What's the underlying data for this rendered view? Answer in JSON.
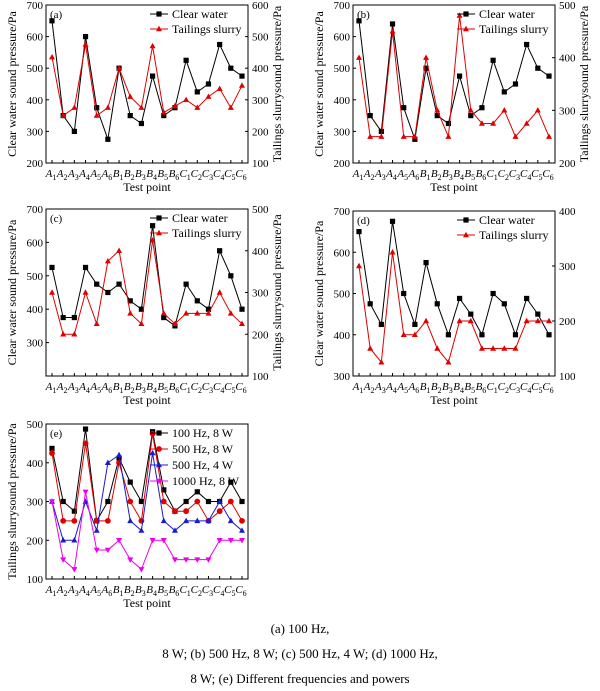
{
  "caption": {
    "line1": "(a)  100  Hz,",
    "line2": "8 W; (b) 500 Hz, 8 W; (c) 500 Hz, 4 W; (d) 1000 Hz,",
    "line3": "8 W; (e) Different frequencies and powers"
  },
  "chart_data": [
    {
      "panel": "(a)",
      "type": "line",
      "categories": [
        "A1",
        "A2",
        "A3",
        "A4",
        "A5",
        "A6",
        "B1",
        "B2",
        "B3",
        "B4",
        "B5",
        "B6",
        "C1",
        "C2",
        "C3",
        "C4",
        "C5",
        "C6"
      ],
      "xlabel": "Test point",
      "ylabel": "Clear water sound pressure/Pa",
      "ylabel2": "Tailings slurrysound pressure/Pa",
      "ylim": [
        200,
        700
      ],
      "yticks": [
        200,
        300,
        400,
        500,
        600,
        700
      ],
      "ylim2": [
        100,
        600
      ],
      "yticks2": [
        100,
        200,
        300,
        400,
        500,
        600
      ],
      "legend_position": "top-right",
      "series": [
        {
          "name": "Clear water",
          "axis": "left",
          "color": "#000000",
          "marker": "square",
          "values": [
            650,
            350,
            300,
            600,
            375,
            275,
            500,
            350,
            325,
            475,
            350,
            375,
            525,
            425,
            450,
            575,
            500,
            475
          ]
        },
        {
          "name": "Tailings slurry",
          "axis": "right",
          "color": "#e00000",
          "marker": "triangle",
          "values": [
            435,
            250,
            275,
            475,
            250,
            275,
            400,
            310,
            275,
            470,
            260,
            280,
            300,
            275,
            310,
            335,
            275,
            345
          ]
        }
      ]
    },
    {
      "panel": "(b)",
      "type": "line",
      "categories": [
        "A1",
        "A2",
        "A3",
        "A4",
        "A5",
        "A6",
        "B1",
        "B2",
        "B3",
        "B4",
        "B5",
        "B6",
        "C1",
        "C2",
        "C3",
        "C4",
        "C5",
        "C6"
      ],
      "xlabel": "Test point",
      "ylabel": "Clear water sound pressure/Pa",
      "ylabel2": "Tailings slurrysound pressure/Pa",
      "ylim": [
        200,
        700
      ],
      "yticks": [
        200,
        300,
        400,
        500,
        600,
        700
      ],
      "ylim2": [
        200,
        500
      ],
      "yticks2": [
        200,
        300,
        400,
        500
      ],
      "legend_position": "top-right",
      "series": [
        {
          "name": "Clear water",
          "axis": "left",
          "color": "#000000",
          "marker": "square",
          "values": [
            650,
            350,
            300,
            640,
            375,
            275,
            500,
            350,
            325,
            475,
            350,
            375,
            525,
            425,
            450,
            575,
            500,
            475
          ]
        },
        {
          "name": "Tailings slurry",
          "axis": "right",
          "color": "#e00000",
          "marker": "triangle",
          "values": [
            400,
            250,
            250,
            450,
            250,
            250,
            400,
            300,
            250,
            480,
            300,
            275,
            275,
            300,
            250,
            275,
            300,
            250
          ]
        }
      ]
    },
    {
      "panel": "(c)",
      "type": "line",
      "categories": [
        "A1",
        "A2",
        "A3",
        "A4",
        "A5",
        "A6",
        "B1",
        "B2",
        "B3",
        "B4",
        "B5",
        "B6",
        "C1",
        "C2",
        "C3",
        "C4",
        "C5",
        "C6"
      ],
      "xlabel": "Test point",
      "ylabel": "Clear water sound pressure/Pa",
      "ylabel2": "Tailings slurrysound pressure/Pa",
      "ylim": [
        200,
        700
      ],
      "yticks": [
        300,
        400,
        500,
        600,
        700
      ],
      "ylim2": [
        100,
        500
      ],
      "yticks2": [
        100,
        200,
        300,
        400,
        500
      ],
      "legend_position": "top-right",
      "series": [
        {
          "name": "Clear water",
          "axis": "left",
          "color": "#000000",
          "marker": "square",
          "values": [
            525,
            375,
            375,
            525,
            475,
            450,
            475,
            425,
            400,
            650,
            375,
            350,
            475,
            425,
            400,
            575,
            500,
            400
          ]
        },
        {
          "name": "Tailings slurry",
          "axis": "right",
          "color": "#e00000",
          "marker": "triangle",
          "values": [
            300,
            200,
            200,
            300,
            225,
            375,
            400,
            250,
            225,
            425,
            250,
            225,
            250,
            250,
            250,
            300,
            250,
            225
          ]
        }
      ]
    },
    {
      "panel": "(d)",
      "type": "line",
      "categories": [
        "A1",
        "A2",
        "A3",
        "A4",
        "A5",
        "A6",
        "B1",
        "B2",
        "B3",
        "B4",
        "B5",
        "B6",
        "C1",
        "C2",
        "C3",
        "C4",
        "C5",
        "C6"
      ],
      "xlabel": "Test point",
      "ylabel": "Clear water sound pressure/Pa",
      "ylim": [
        300,
        700
      ],
      "yticks": [
        300,
        400,
        500,
        600,
        700
      ],
      "ylim2": [
        100,
        400
      ],
      "yticks2": [
        100,
        200,
        300,
        400
      ],
      "legend_position": "top-right",
      "series": [
        {
          "name": "Clear water",
          "axis": "left",
          "color": "#000000",
          "marker": "square",
          "values": [
            650,
            475,
            425,
            675,
            500,
            425,
            575,
            475,
            400,
            488,
            450,
            400,
            500,
            475,
            400,
            488,
            450,
            400
          ]
        },
        {
          "name": "Tailings slurry",
          "axis": "right",
          "color": "#e00000",
          "marker": "triangle",
          "values": [
            300,
            150,
            125,
            325,
            175,
            175,
            200,
            150,
            125,
            200,
            200,
            150,
            150,
            150,
            150,
            200,
            200,
            200
          ]
        }
      ]
    },
    {
      "panel": "(e)",
      "type": "line",
      "categories": [
        "A1",
        "A2",
        "A3",
        "A4",
        "A5",
        "A6",
        "B1",
        "B2",
        "B3",
        "B4",
        "B5",
        "B6",
        "C1",
        "C2",
        "C3",
        "C4",
        "C5",
        "C6"
      ],
      "xlabel": "Test point",
      "ylabel": "Tailings slurrysound pressure/Pa",
      "ylim": [
        100,
        500
      ],
      "yticks": [
        100,
        200,
        300,
        400,
        500
      ],
      "legend_position": "top-right",
      "series": [
        {
          "name": "100 Hz, 8 W",
          "color": "#000000",
          "marker": "square",
          "values": [
            437,
            300,
            275,
            487,
            250,
            300,
            412,
            350,
            300,
            480,
            330,
            275,
            300,
            325,
            300,
            300,
            350,
            300
          ]
        },
        {
          "name": "500 Hz, 8 W",
          "color": "#e00000",
          "marker": "circle",
          "values": [
            425,
            250,
            250,
            450,
            250,
            250,
            400,
            300,
            250,
            475,
            300,
            275,
            275,
            300,
            250,
            275,
            300,
            250
          ]
        },
        {
          "name": "500 Hz, 4 W",
          "color": "#1a1acc",
          "marker": "triangle",
          "values": [
            300,
            200,
            200,
            300,
            225,
            400,
            420,
            250,
            225,
            425,
            250,
            225,
            250,
            250,
            250,
            300,
            250,
            225
          ]
        },
        {
          "name": "1000 Hz, 8 W",
          "color": "#ee00ee",
          "marker": "triangle-down",
          "values": [
            300,
            150,
            125,
            325,
            175,
            175,
            200,
            150,
            125,
            200,
            200,
            150,
            150,
            150,
            150,
            200,
            200,
            200
          ]
        }
      ]
    }
  ]
}
